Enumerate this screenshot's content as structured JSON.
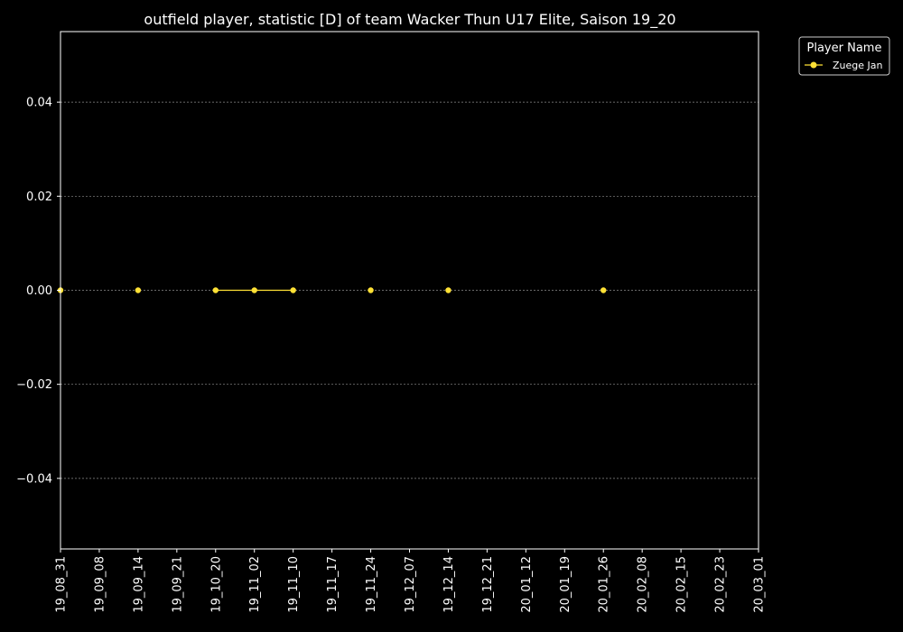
{
  "chart_data": {
    "type": "line",
    "title": "outfield player, statistic [D] of team Wacker Thun U17 Elite, Saison 19_20",
    "xlabel": "",
    "ylabel": "",
    "x_ticks": [
      "19_08_31",
      "19_09_08",
      "19_09_14",
      "19_09_21",
      "19_10_20",
      "19_11_02",
      "19_11_10",
      "19_11_17",
      "19_11_24",
      "19_12_07",
      "19_12_14",
      "19_12_21",
      "20_01_12",
      "20_01_19",
      "20_01_26",
      "20_02_08",
      "20_02_15",
      "20_02_23",
      "20_03_01"
    ],
    "y_ticks": [
      "−0.04",
      "−0.02",
      "0.00",
      "0.02",
      "0.04"
    ],
    "y_tick_values": [
      -0.04,
      -0.02,
      0.0,
      0.02,
      0.04
    ],
    "ylim": [
      -0.055,
      0.055
    ],
    "grid": true,
    "legend_position": "top-right, outside plot",
    "legend": {
      "title": "Player Name"
    },
    "series": [
      {
        "name": "Zuege Jan",
        "color": "#ffe135",
        "points": [
          {
            "x": "19_08_31",
            "y": 0.0
          },
          {
            "x": "19_09_14",
            "y": 0.0
          },
          {
            "x": "19_10_20",
            "y": 0.0
          },
          {
            "x": "19_11_02",
            "y": 0.0
          },
          {
            "x": "19_11_10",
            "y": 0.0
          },
          {
            "x": "19_11_24",
            "y": 0.0
          },
          {
            "x": "19_12_14",
            "y": 0.0
          },
          {
            "x": "20_01_26",
            "y": 0.0
          }
        ],
        "segments": [
          [
            "19_10_20",
            "19_11_02",
            "19_11_10"
          ]
        ]
      }
    ],
    "colors": {
      "background": "#000000",
      "axes": "#ffffff",
      "grid": "#8c8c8c"
    }
  }
}
